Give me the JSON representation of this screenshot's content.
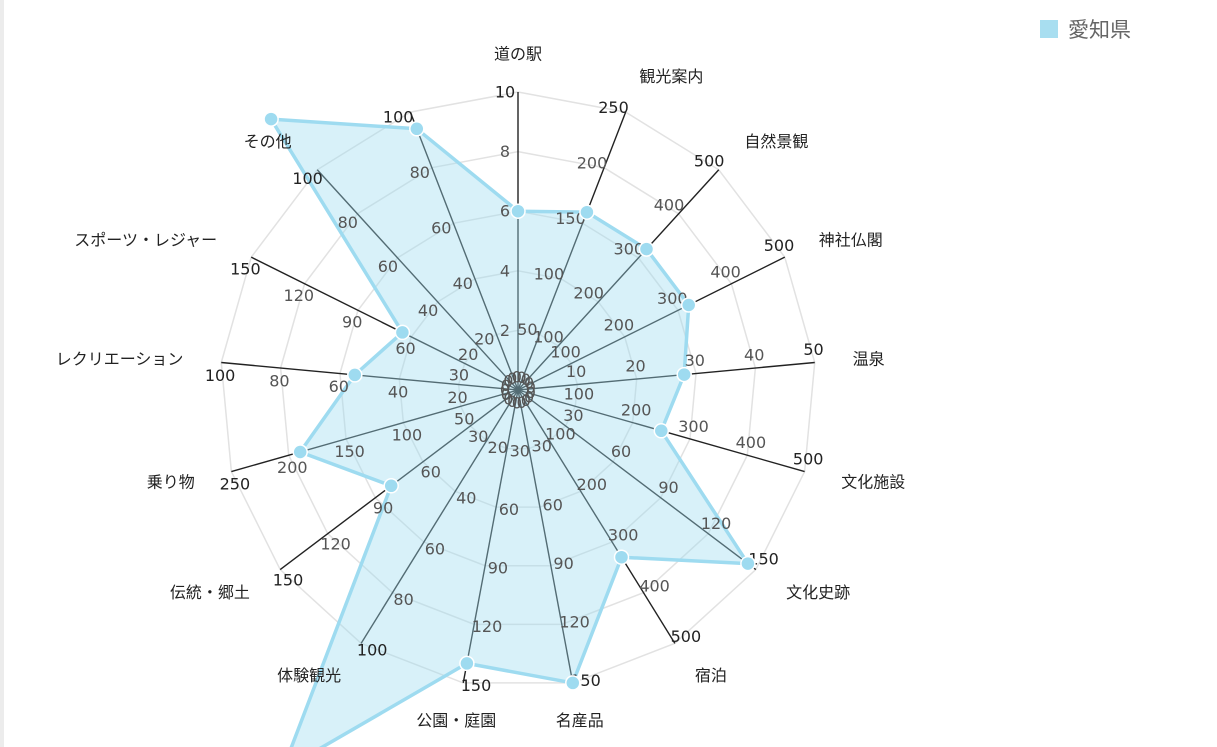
{
  "legend": {
    "label": "愛知県",
    "color": "#a8def0"
  },
  "chart_data": {
    "type": "radar",
    "title": "",
    "legend_position": "top-right",
    "grid": true,
    "series": [
      {
        "name": "愛知県",
        "color": "#9edbf0",
        "values": [
          6,
          160,
          320,
          320,
          28,
          250,
          145,
          330,
          150,
          140,
          150,
          80,
          190,
          55,
          65,
          123,
          94
        ]
      }
    ],
    "axes": [
      {
        "label": "道の駅",
        "max": 10,
        "ticks": [
          0,
          2,
          4,
          6,
          8,
          10
        ]
      },
      {
        "label": "観光案内",
        "max": 250,
        "ticks": [
          0,
          50,
          100,
          150,
          200,
          250
        ]
      },
      {
        "label": "自然景観",
        "max": 500,
        "ticks": [
          0,
          100,
          200,
          300,
          400,
          500
        ]
      },
      {
        "label": "神社仏閣",
        "max": 500,
        "ticks": [
          0,
          100,
          200,
          300,
          400,
          500
        ]
      },
      {
        "label": "温泉",
        "max": 50,
        "ticks": [
          0,
          10,
          20,
          30,
          40,
          50
        ]
      },
      {
        "label": "文化施設",
        "max": 500,
        "ticks": [
          0,
          100,
          200,
          300,
          400,
          500
        ]
      },
      {
        "label": "文化史跡",
        "max": 150,
        "ticks": [
          0,
          30,
          60,
          90,
          120,
          150
        ]
      },
      {
        "label": "宿泊",
        "max": 500,
        "ticks": [
          0,
          100,
          200,
          300,
          400,
          500
        ]
      },
      {
        "label": "名産品",
        "max": 150,
        "ticks": [
          0,
          30,
          60,
          90,
          120,
          150
        ]
      },
      {
        "label": "公園・庭園",
        "max": 150,
        "ticks": [
          0,
          30,
          60,
          90,
          120,
          150
        ]
      },
      {
        "label": "体験観光",
        "max": 100,
        "ticks": [
          0,
          20,
          40,
          60,
          80,
          100
        ]
      },
      {
        "label": "伝統・郷土",
        "max": 150,
        "ticks": [
          0,
          30,
          60,
          90,
          120,
          150
        ]
      },
      {
        "label": "乗り物",
        "max": 250,
        "ticks": [
          0,
          50,
          100,
          150,
          200,
          250
        ]
      },
      {
        "label": "レクリエーション",
        "max": 100,
        "ticks": [
          0,
          20,
          40,
          60,
          80,
          100
        ]
      },
      {
        "label": "スポーツ・レジャー",
        "max": 150,
        "ticks": [
          0,
          30,
          60,
          90,
          120,
          150
        ]
      },
      {
        "label": "その他",
        "max": 100,
        "ticks": [
          0,
          20,
          40,
          60,
          80,
          100
        ]
      },
      {
        "label": "",
        "max": 100,
        "ticks": [
          0,
          20,
          40,
          60,
          80,
          100
        ]
      }
    ]
  }
}
